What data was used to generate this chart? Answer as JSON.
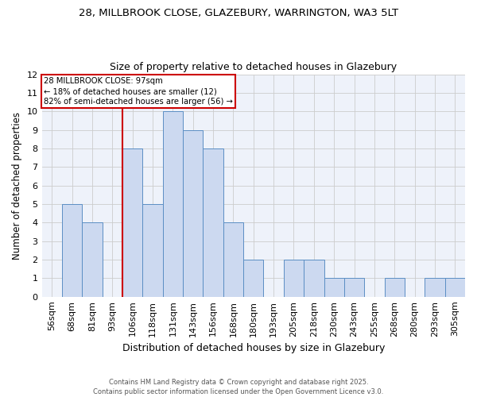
{
  "title_line1": "28, MILLBROOK CLOSE, GLAZEBURY, WARRINGTON, WA3 5LT",
  "title_line2": "Size of property relative to detached houses in Glazebury",
  "xlabel": "Distribution of detached houses by size in Glazebury",
  "ylabel": "Number of detached properties",
  "categories": [
    "56sqm",
    "68sqm",
    "81sqm",
    "93sqm",
    "106sqm",
    "118sqm",
    "131sqm",
    "143sqm",
    "156sqm",
    "168sqm",
    "180sqm",
    "193sqm",
    "205sqm",
    "218sqm",
    "230sqm",
    "243sqm",
    "255sqm",
    "268sqm",
    "280sqm",
    "293sqm",
    "305sqm"
  ],
  "values": [
    0,
    5,
    4,
    0,
    8,
    5,
    10,
    9,
    8,
    4,
    2,
    0,
    2,
    2,
    1,
    1,
    0,
    1,
    0,
    1,
    1
  ],
  "bar_color": "#ccd9f0",
  "bar_edge_color": "#5b8ec4",
  "subject_bin_index": 3,
  "annotation_text": "28 MILLBROOK CLOSE: 97sqm\n← 18% of detached houses are smaller (12)\n82% of semi-detached houses are larger (56) →",
  "annotation_box_color": "#ffffff",
  "annotation_box_edge": "#cc0000",
  "subject_line_color": "#cc0000",
  "ylim": [
    0,
    12
  ],
  "yticks": [
    0,
    1,
    2,
    3,
    4,
    5,
    6,
    7,
    8,
    9,
    10,
    11,
    12
  ],
  "grid_color": "#cccccc",
  "footnote": "Contains HM Land Registry data © Crown copyright and database right 2025.\nContains public sector information licensed under the Open Government Licence v3.0.",
  "fig_width": 6.0,
  "fig_height": 5.0,
  "dpi": 100
}
